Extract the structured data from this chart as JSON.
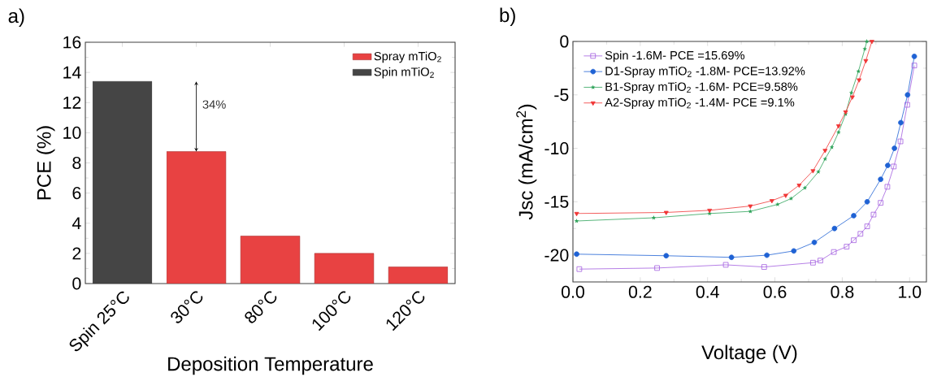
{
  "chart_data": [
    {
      "type": "bar",
      "title": "a)",
      "xlabel": "Deposition Temperature",
      "ylabel": "PCE (%)",
      "categories": [
        "Spin 25°C",
        "30°C",
        "80°C",
        "100°C",
        "120°C"
      ],
      "series": [
        {
          "name": "Spray mTiO$_{2}$",
          "color": "#e84242",
          "values": [
            null,
            8.75,
            3.15,
            2.0,
            1.1
          ]
        },
        {
          "name": "Spin mTiO$_{2}$",
          "color": "#454545",
          "values": [
            13.4,
            null,
            null,
            null,
            null
          ]
        }
      ],
      "ylim": [
        0,
        16
      ],
      "yticks": [
        0,
        2,
        4,
        6,
        8,
        10,
        12,
        14,
        16
      ],
      "legend": "top right",
      "annotations": [
        "34%"
      ]
    },
    {
      "type": "line",
      "title": "b)",
      "xlabel": "Voltage (V)",
      "ylabel": "Jsc (mA/cm$^{2}$)",
      "series": [
        {
          "name": "Spin -1.6M- PCE =15.69%",
          "color": "#a35fe0",
          "marker": "square",
          "x": [
            0.019,
            0.25,
            0.454,
            0.568,
            0.713,
            0.735,
            0.775,
            0.813,
            0.834,
            0.854,
            0.874,
            0.893,
            0.914,
            0.934,
            0.953,
            0.973,
            0.993,
            1.014
          ],
          "values": [
            -21.3,
            -21.2,
            -20.9,
            -21.1,
            -20.7,
            -20.5,
            -19.7,
            -19.2,
            -18.6,
            -18.0,
            -17.3,
            -16.2,
            -15.1,
            -13.6,
            -11.7,
            -9.35,
            -5.93,
            -2.25
          ]
        },
        {
          "name": "D1-Spray mTiO$_{2}$ -1.8M- PCE=13.92%",
          "color": "#1f62d4",
          "marker": "circle",
          "x": [
            0.011,
            0.277,
            0.471,
            0.576,
            0.656,
            0.717,
            0.777,
            0.834,
            0.874,
            0.914,
            0.935,
            0.955,
            0.974,
            0.994,
            1.014
          ],
          "values": [
            -19.9,
            -20.05,
            -20.2,
            -20.0,
            -19.6,
            -18.8,
            -17.5,
            -16.3,
            -15.0,
            -12.9,
            -11.6,
            -10.0,
            -7.6,
            -5.0,
            -1.4
          ]
        },
        {
          "name": "B1-Spray mTiO$_{2}$ -1.6M- PCE=9.58%",
          "color": "#2fa35a",
          "marker": "star",
          "x": [
            0.011,
            0.24,
            0.406,
            0.527,
            0.608,
            0.648,
            0.689,
            0.729,
            0.749,
            0.769,
            0.789,
            0.81,
            0.827,
            0.848,
            0.867,
            0.873
          ],
          "values": [
            -16.8,
            -16.5,
            -16.1,
            -15.9,
            -15.25,
            -14.7,
            -13.7,
            -12.2,
            -11.0,
            -9.9,
            -8.5,
            -6.8,
            -4.8,
            -2.8,
            -0.7,
            0
          ]
        },
        {
          "name": "A2-Spray mTiO$_{2}$ -1.4M- PCE =9.1%",
          "color": "#f03535",
          "marker": "triangle",
          "x": [
            0.011,
            0.277,
            0.406,
            0.527,
            0.591,
            0.632,
            0.672,
            0.713,
            0.749,
            0.789,
            0.81,
            0.83,
            0.85,
            0.87,
            0.888
          ],
          "values": [
            -16.1,
            -16.0,
            -15.8,
            -15.4,
            -14.9,
            -14.4,
            -13.45,
            -12.1,
            -10.2,
            -7.9,
            -6.6,
            -5.2,
            -3.6,
            -1.8,
            0
          ]
        }
      ],
      "xlim": [
        0,
        1.05
      ],
      "xticks": [
        {
          "value": 0,
          "label": "0.0"
        },
        {
          "value": 0.2,
          "label": "0.2"
        },
        {
          "value": 0.4,
          "label": "0.4"
        },
        {
          "value": 0.6,
          "label": "0.6"
        },
        {
          "value": 0.8,
          "label": "0.8"
        },
        {
          "value": 1.0,
          "label": "1.0"
        }
      ],
      "ylim": [
        -22.5,
        0
      ],
      "yticks": [
        0,
        -5,
        -10,
        -15,
        -20
      ],
      "legend": "top left"
    }
  ]
}
